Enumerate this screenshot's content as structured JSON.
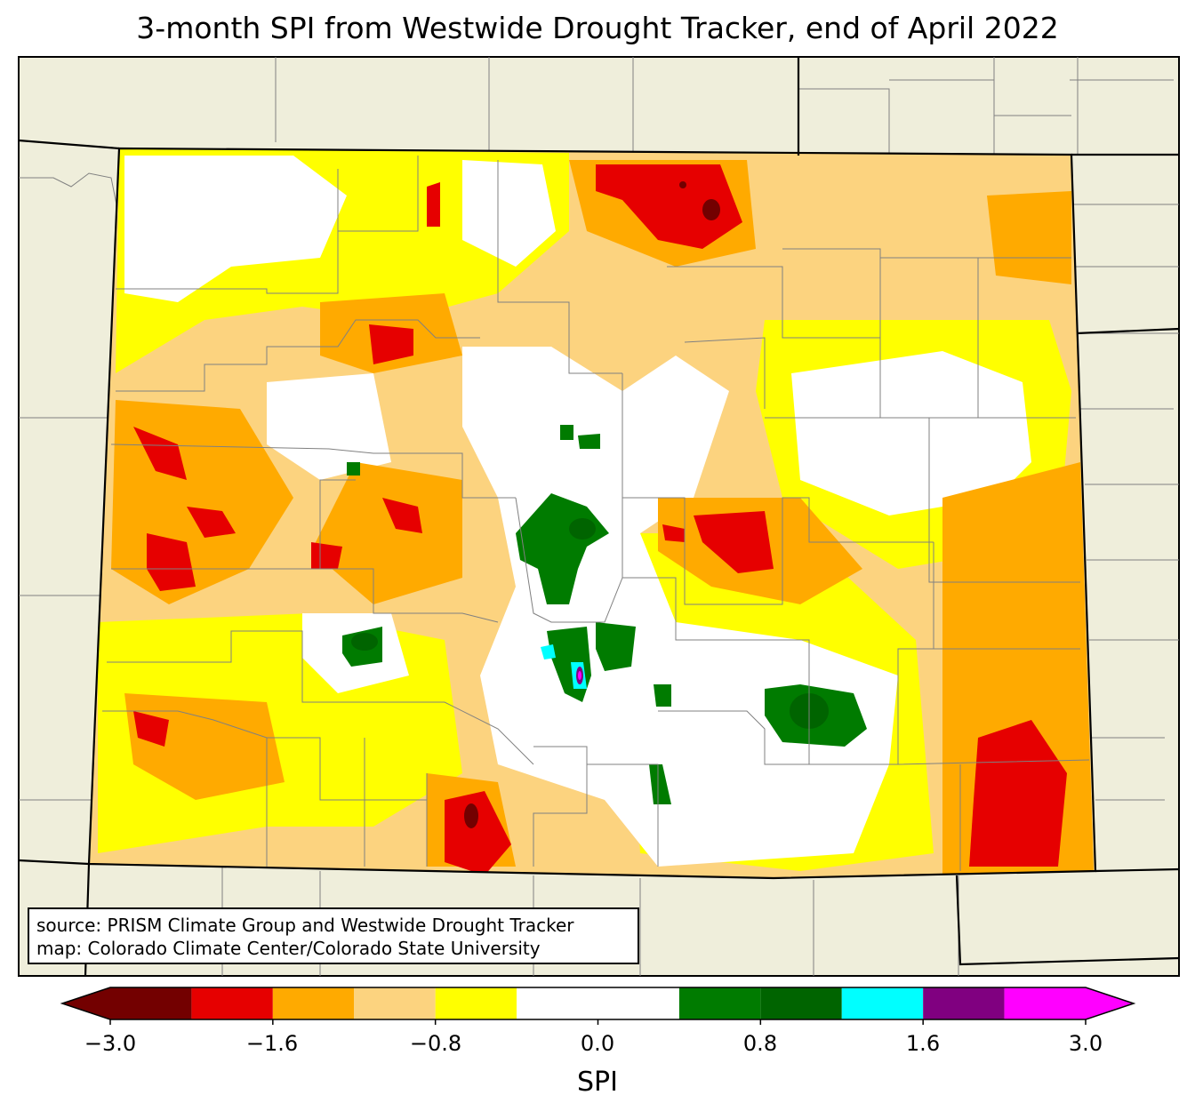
{
  "title": "3-month SPI from Westwide Drought Tracker, end of April 2022",
  "source": {
    "line1": "source: PRISM Climate Group and Westwide Drought Tracker",
    "line2": "map: Colorado Climate Center/Colorado State University"
  },
  "colorbar": {
    "label": "SPI",
    "ticks": [
      "−3.0",
      "−1.6",
      "−0.8",
      "0.0",
      "0.8",
      "1.6",
      "3.0"
    ],
    "bins": [
      {
        "from": -3.0,
        "to": -2.3,
        "color": "#730000"
      },
      {
        "from": -2.3,
        "to": -1.6,
        "color": "#e60000"
      },
      {
        "from": -1.6,
        "to": -1.2,
        "color": "#ffaa00"
      },
      {
        "from": -1.2,
        "to": -0.8,
        "color": "#fcd37f"
      },
      {
        "from": -0.8,
        "to": -0.4,
        "color": "#ffff00"
      },
      {
        "from": -0.4,
        "to": 0.4,
        "color": "#ffffff"
      },
      {
        "from": 0.4,
        "to": 0.8,
        "color": "#007b00"
      },
      {
        "from": 0.8,
        "to": 1.2,
        "color": "#006400"
      },
      {
        "from": 1.2,
        "to": 1.6,
        "color": "#00ffff"
      },
      {
        "from": 1.6,
        "to": 2.3,
        "color": "#800080"
      },
      {
        "from": 2.3,
        "to": 3.0,
        "color": "#ff00ff"
      }
    ]
  },
  "colors": {
    "land": "#efeedb",
    "state_border": "#000000",
    "county_border": "#808080"
  }
}
